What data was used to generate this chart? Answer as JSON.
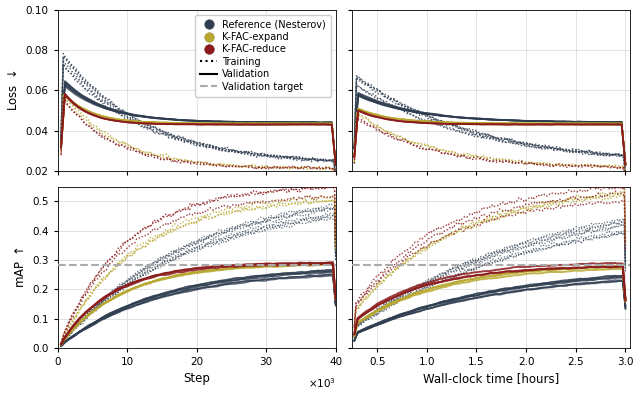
{
  "colors": {
    "reference": "#2e3d4f",
    "kfac_expand": "#b8a830",
    "kfac_reduce": "#8b1a1a",
    "validation_target": "#aaaaaa"
  },
  "loss_ylim": [
    0.02,
    0.1
  ],
  "loss_yticks": [
    0.02,
    0.04,
    0.06,
    0.08,
    0.1
  ],
  "map_ylim": [
    0.0,
    0.55
  ],
  "map_yticks": [
    0.0,
    0.1,
    0.2,
    0.3,
    0.4,
    0.5
  ],
  "step_xlim": [
    0,
    40000
  ],
  "step_xticks": [
    0,
    10000,
    20000,
    30000,
    40000
  ],
  "time_xlim": [
    0.25,
    3.05
  ],
  "time_xticks": [
    0.5,
    1.0,
    1.5,
    2.0,
    2.5,
    3.0
  ],
  "validation_target_loss": 0.044,
  "validation_target_map": 0.283,
  "xlabel_step": "Step",
  "xlabel_time": "Wall-clock time [hours]",
  "ylabel_loss": "Loss $\\downarrow$",
  "ylabel_map": "mAP $\\uparrow$",
  "legend_labels": [
    "Reference (Nesterov)",
    "K-FAC-expand",
    "K-FAC-reduce",
    "Training",
    "Validation",
    "Validation target"
  ]
}
